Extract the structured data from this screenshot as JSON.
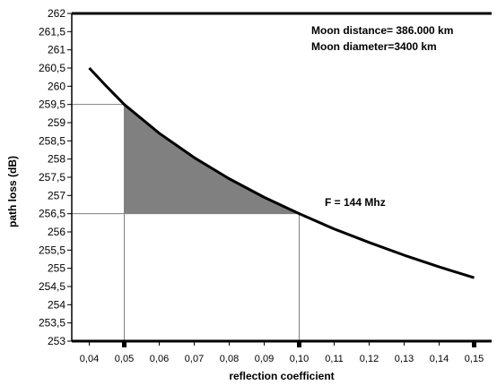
{
  "chart_data": {
    "type": "line",
    "xlabel": "reflection coefficient",
    "ylabel": "path loss (dB)",
    "xlim": [
      0.035,
      0.155
    ],
    "ylim": [
      253,
      262
    ],
    "x_ticks": [
      "0,04",
      "0,05",
      "0,06",
      "0,07",
      "0,08",
      "0,09",
      "0,10",
      "0,11",
      "0,12",
      "0,13",
      "0,14",
      "0,15"
    ],
    "y_ticks": [
      "253",
      "253,5",
      "254",
      "254,5",
      "255",
      "255,5",
      "256",
      "256,5",
      "257",
      "257,5",
      "258",
      "258,5",
      "259",
      "259,5",
      "260",
      "260,5",
      "261",
      "261,5",
      "262"
    ],
    "series": [
      {
        "x": [
          0.04,
          0.045,
          0.05,
          0.06,
          0.07,
          0.08,
          0.09,
          0.1,
          0.11,
          0.12,
          0.13,
          0.14,
          0.15
        ],
        "y": [
          260.5,
          259.99,
          259.5,
          258.71,
          258.04,
          257.46,
          256.95,
          256.5,
          256.08,
          255.71,
          255.36,
          255.04,
          254.74
        ],
        "color": "#000000"
      }
    ],
    "shaded_region": {
      "x_range": [
        0.05,
        0.1
      ],
      "y_range": [
        256.5,
        259.5
      ],
      "color": "#808080"
    },
    "annotations": {
      "moon_distance": "Moon distance= 386.000 km",
      "moon_diameter": "Moon diameter=3400 km",
      "frequency": "F = 144 Mhz"
    },
    "grid": false
  }
}
